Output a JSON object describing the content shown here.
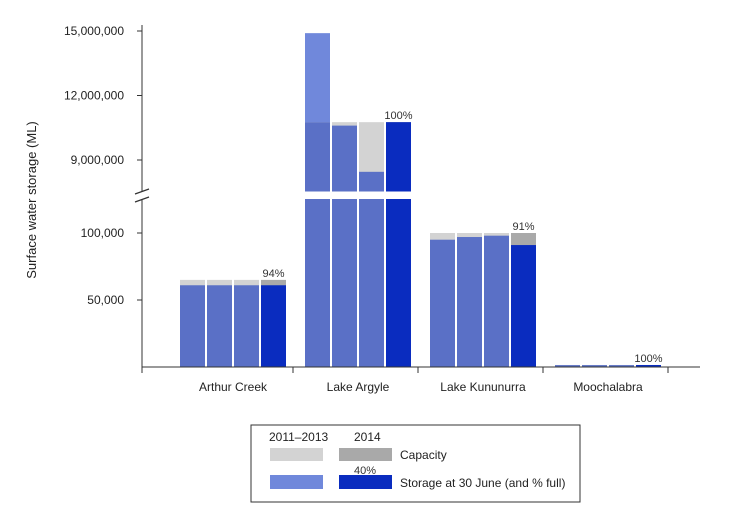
{
  "chart_data": {
    "type": "bar",
    "ylabel": "Surface water storage (ML)",
    "y_axis_break": true,
    "lower_panel": {
      "ylim": [
        0,
        100000
      ],
      "ticks": [
        {
          "value": 50000,
          "label": "50,000"
        },
        {
          "value": 100000,
          "label": "100,000"
        }
      ]
    },
    "upper_panel": {
      "ylim": [
        7000000,
        15000000
      ],
      "ticks": [
        {
          "value": 9000000,
          "label": "9,000,000"
        },
        {
          "value": 12000000,
          "label": "12,000,000"
        },
        {
          "value": 15000000,
          "label": "15,000,000"
        }
      ]
    },
    "categories": [
      "Arthur Creek",
      "Lake Argyle",
      "Lake Kununurra",
      "Moochalabra"
    ],
    "bar_periods": [
      "2011",
      "2012",
      "2013",
      "2014"
    ],
    "capacity": [
      65000,
      10760000,
      100000,
      1500
    ],
    "storage": [
      [
        61000,
        61000,
        61000,
        61000
      ],
      [
        14900000,
        10600000,
        8450000,
        10760000
      ],
      [
        95000,
        97000,
        98000,
        91000
      ],
      [
        1400,
        1400,
        1400,
        1500
      ]
    ],
    "percent_full_labels": [
      "94%",
      "100%",
      "91%",
      "100%"
    ],
    "colors": {
      "capacity_past": "#d3d3d3",
      "capacity_2014": "#a9a9a9",
      "storage_past": "#5a70c6",
      "storage_top_light": "#7088db",
      "storage_2014": "#0a2cbf",
      "axis": "#333333"
    },
    "legend": {
      "header_past": "2011–2013",
      "header_current": "2014",
      "capacity_label": "Capacity",
      "storage_label": "Storage at 30 June (and % full)",
      "example_percent": "40%"
    }
  }
}
